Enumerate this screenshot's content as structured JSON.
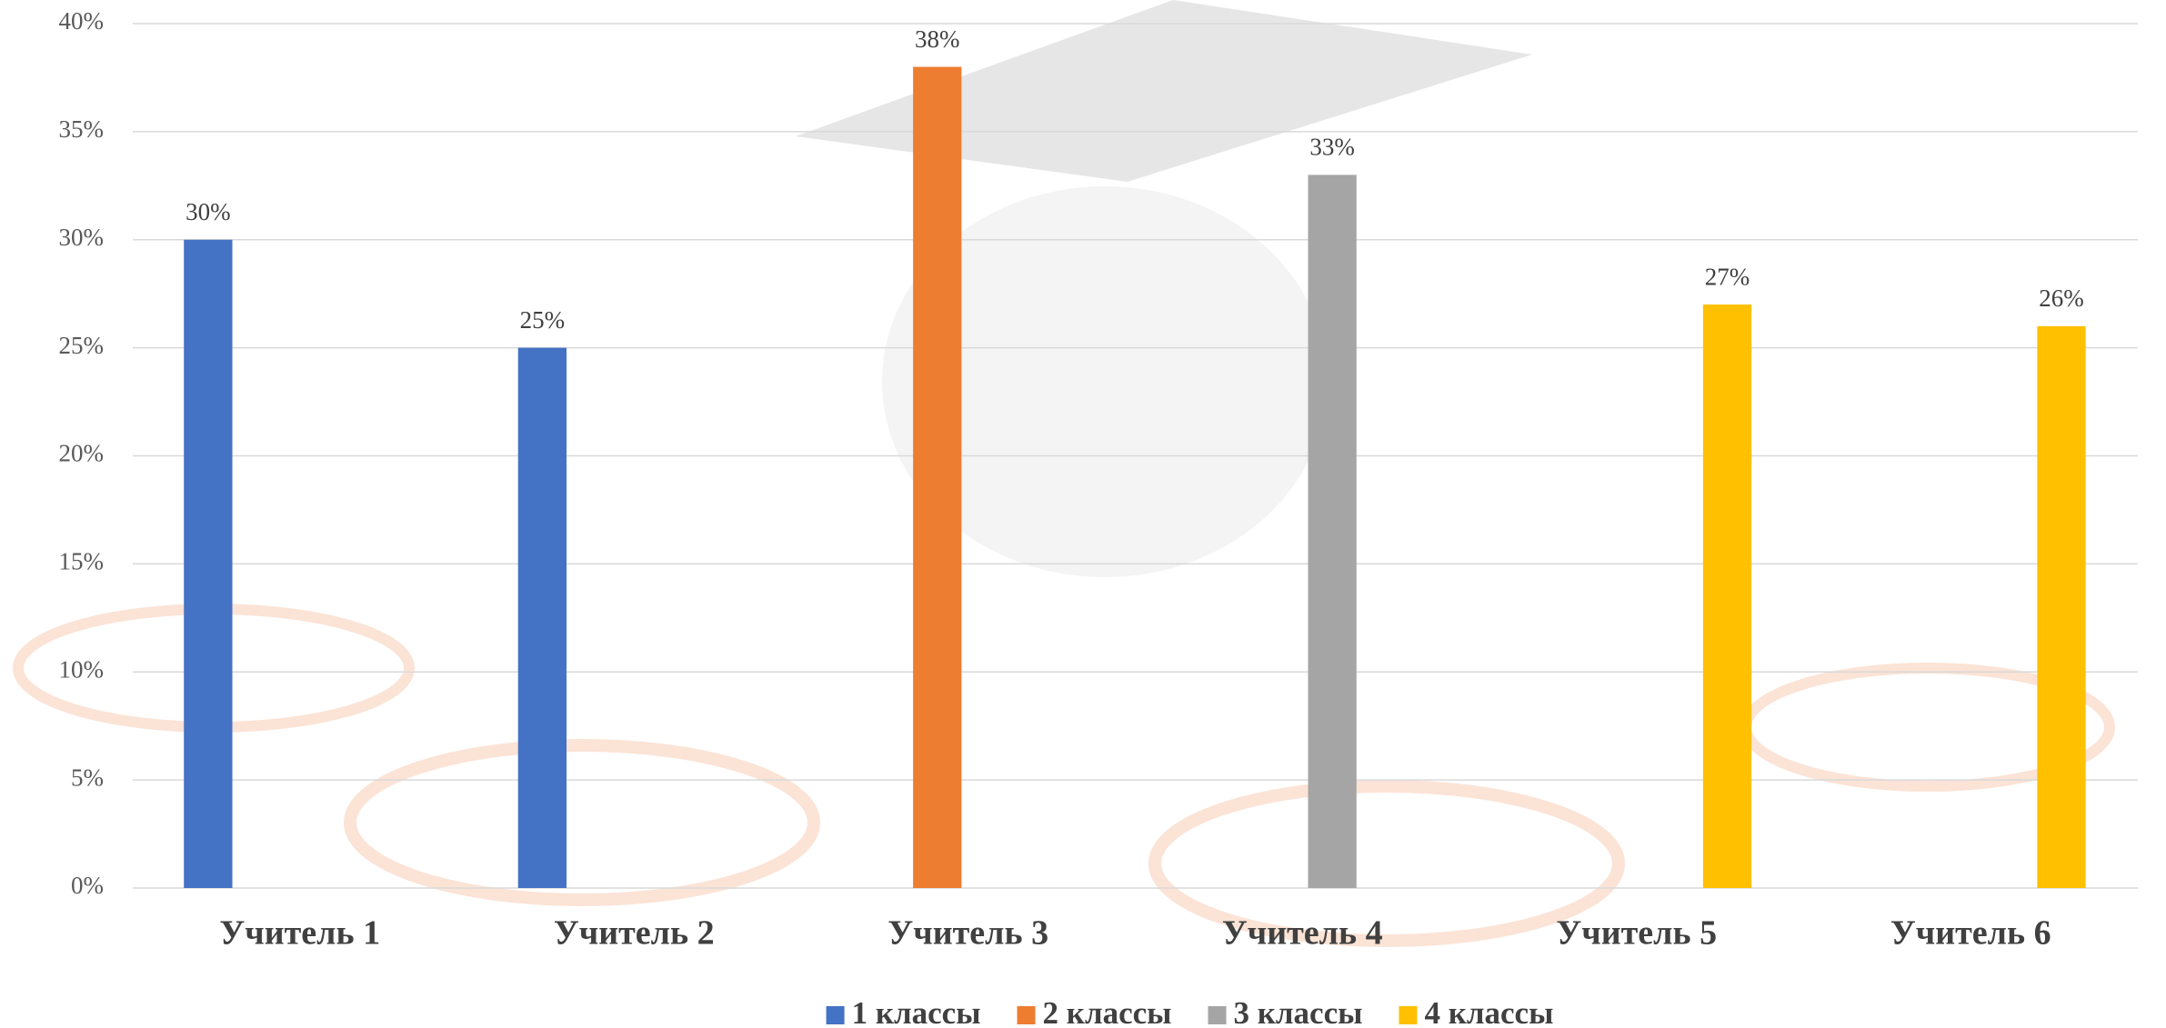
{
  "chart_data": {
    "type": "bar",
    "categories": [
      "Учитель 1",
      "Учитель 2",
      "Учитель 3",
      "Учитель 4",
      "Учитель 5",
      "Учитель 6"
    ],
    "series": [
      {
        "name": "1 классы",
        "color": "#4472c4",
        "values": [
          30,
          25,
          null,
          null,
          null,
          null
        ],
        "value_labels": [
          "30%",
          "25%",
          null,
          null,
          null,
          null
        ]
      },
      {
        "name": "2 классы",
        "color": "#ed7d31",
        "values": [
          null,
          null,
          38,
          null,
          null,
          null
        ],
        "value_labels": [
          null,
          null,
          "38%",
          null,
          null,
          null
        ]
      },
      {
        "name": "3 классы",
        "color": "#a5a5a5",
        "values": [
          null,
          null,
          null,
          33,
          null,
          null
        ],
        "value_labels": [
          null,
          null,
          null,
          "33%",
          null,
          null
        ]
      },
      {
        "name": "4 классы",
        "color": "#ffc000",
        "values": [
          null,
          null,
          null,
          null,
          27,
          26
        ],
        "value_labels": [
          null,
          null,
          null,
          null,
          "27%",
          "26%"
        ]
      }
    ],
    "ylim": [
      0,
      40
    ],
    "yticks": [
      {
        "value": 0,
        "label": "0%"
      },
      {
        "value": 5,
        "label": "5%"
      },
      {
        "value": 10,
        "label": "10%"
      },
      {
        "value": 15,
        "label": "15%"
      },
      {
        "value": 20,
        "label": "20%"
      },
      {
        "value": 25,
        "label": "25%"
      },
      {
        "value": 30,
        "label": "30%"
      },
      {
        "value": 35,
        "label": "35%"
      },
      {
        "value": 40,
        "label": "40%"
      }
    ],
    "grid": true,
    "legend": "bottom"
  }
}
